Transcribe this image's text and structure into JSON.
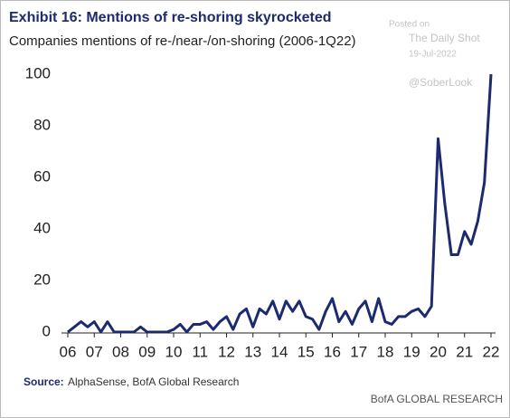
{
  "chart_data": {
    "type": "line",
    "title": "Exhibit 16: Mentions of re-shoring skyrocketed",
    "subtitle": "Companies mentions of re-/near-/on-shoring (2006-1Q22)",
    "categories": [
      "06",
      null,
      null,
      null,
      "07",
      null,
      null,
      null,
      "08",
      null,
      null,
      null,
      "09",
      null,
      null,
      null,
      "10",
      null,
      null,
      null,
      "11",
      null,
      null,
      null,
      "12",
      null,
      null,
      null,
      "13",
      null,
      null,
      null,
      "14",
      null,
      null,
      null,
      "15",
      null,
      null,
      null,
      "16",
      null,
      null,
      null,
      "17",
      null,
      null,
      null,
      "18",
      null,
      null,
      null,
      "19",
      null,
      null,
      null,
      "20",
      null,
      null,
      null,
      "21",
      null,
      null,
      null,
      "22"
    ],
    "values": [
      0,
      2,
      4,
      2,
      4,
      0,
      4,
      0,
      0,
      0,
      0,
      2,
      0,
      0,
      0,
      0,
      1,
      3,
      0,
      3,
      3,
      4,
      1,
      4,
      6,
      1,
      7,
      9,
      2,
      9,
      7,
      12,
      5,
      12,
      8,
      12,
      6,
      5,
      1,
      8,
      13,
      4,
      8,
      3,
      9,
      12,
      4,
      13,
      4,
      3,
      6,
      6,
      8,
      9,
      6,
      10,
      75,
      50,
      30,
      30,
      39,
      34,
      43,
      58,
      100
    ],
    "color": "#1c2a6e",
    "ylim": [
      0,
      100
    ],
    "yticks": [
      0,
      20,
      40,
      60,
      80,
      100
    ],
    "grid": false,
    "source_label": "Source:",
    "source": "AlphaSense, BofA Global Research",
    "brand": "BofA GLOBAL RESEARCH",
    "watermark": [
      "Posted on",
      "The Daily Shot",
      "19-Jul-2022",
      "@SoberLook"
    ]
  }
}
